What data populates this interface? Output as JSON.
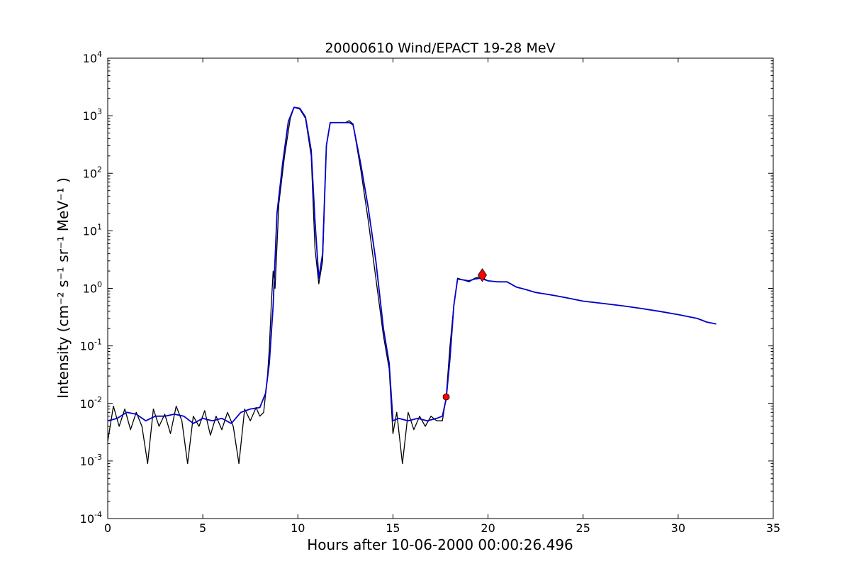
{
  "chart_data": {
    "type": "line",
    "title": "20000610 Wind/EPACT 19-28 MeV",
    "xlabel": "Hours after 10-06-2000 00:00:26.496",
    "ylabel": "Intensity (cm⁻² s⁻¹ sr⁻¹ MeV⁻¹ )",
    "xlim": [
      0,
      35
    ],
    "ylim": [
      0.0001,
      10000
    ],
    "yscale": "log",
    "grid": false,
    "x_ticks": [
      "0",
      "5",
      "10",
      "15",
      "20",
      "25",
      "30",
      "35"
    ],
    "y_ticks": [
      {
        "base": "10",
        "exp": "-4"
      },
      {
        "base": "10",
        "exp": "-3"
      },
      {
        "base": "10",
        "exp": "-2"
      },
      {
        "base": "10",
        "exp": "-1"
      },
      {
        "base": "10",
        "exp": "0"
      },
      {
        "base": "10",
        "exp": "1"
      },
      {
        "base": "10",
        "exp": "2"
      },
      {
        "base": "10",
        "exp": "3"
      },
      {
        "base": "10",
        "exp": "4"
      }
    ],
    "series": [
      {
        "color": "#000000",
        "x": [
          0.0,
          0.3,
          0.6,
          0.9,
          1.2,
          1.5,
          1.8,
          2.1,
          2.4,
          2.7,
          3.0,
          3.3,
          3.6,
          3.9,
          4.2,
          4.5,
          4.8,
          5.1,
          5.4,
          5.7,
          6.0,
          6.3,
          6.6,
          6.9,
          7.2,
          7.5,
          7.8,
          8.0,
          8.2,
          8.4,
          8.5,
          8.6,
          8.7,
          8.8,
          9.0,
          9.3,
          9.6,
          9.8,
          10.1,
          10.4,
          10.7,
          10.9,
          11.1,
          11.3,
          11.5,
          11.7,
          11.9,
          12.2,
          12.5,
          12.7,
          12.9,
          13.3,
          13.7,
          14.1,
          14.5,
          14.8,
          15.0,
          15.2,
          15.5,
          15.8,
          16.1,
          16.4,
          16.7,
          17.0,
          17.3,
          17.6,
          17.8,
          18.0,
          18.2,
          18.4,
          18.7,
          19.0,
          19.3,
          19.6,
          20.0,
          20.5,
          21.0,
          21.5,
          22.0,
          22.5,
          23.0,
          23.5,
          24.0,
          25.0,
          26.0,
          27.0,
          28.0,
          29.0,
          30.0,
          31.0,
          31.5,
          32.0
        ],
        "values": [
          0.0022,
          0.009,
          0.004,
          0.008,
          0.0035,
          0.007,
          0.004,
          0.0009,
          0.008,
          0.004,
          0.0065,
          0.003,
          0.009,
          0.005,
          0.0009,
          0.006,
          0.004,
          0.0075,
          0.0028,
          0.006,
          0.0035,
          0.007,
          0.004,
          0.0009,
          0.008,
          0.005,
          0.0085,
          0.006,
          0.007,
          0.03,
          0.09,
          0.5,
          2.0,
          1.0,
          30,
          200,
          900,
          1400,
          1300,
          900,
          200,
          5,
          1.2,
          3,
          300,
          750,
          760,
          760,
          760,
          820,
          720,
          120,
          15,
          1.5,
          0.15,
          0.04,
          0.003,
          0.007,
          0.0009,
          0.007,
          0.0035,
          0.006,
          0.004,
          0.006,
          0.005,
          0.005,
          0.013,
          0.1,
          0.5,
          1.5,
          1.4,
          1.3,
          1.5,
          1.6,
          1.35,
          1.3,
          1.3,
          1.05,
          0.95,
          0.85,
          0.8,
          0.75,
          0.7,
          0.6,
          0.55,
          0.5,
          0.45,
          0.4,
          0.35,
          0.3,
          0.26,
          0.24
        ]
      },
      {
        "color": "#0000cc",
        "x": [
          0.0,
          0.5,
          1.0,
          1.5,
          2.0,
          2.5,
          3.0,
          3.5,
          4.0,
          4.5,
          5.0,
          5.5,
          6.0,
          6.5,
          7.0,
          7.5,
          8.0,
          8.3,
          8.5,
          8.7,
          8.9,
          9.2,
          9.5,
          9.8,
          10.1,
          10.4,
          10.7,
          10.9,
          11.1,
          11.3,
          11.5,
          11.7,
          11.9,
          12.3,
          12.7,
          12.9,
          13.3,
          13.7,
          14.1,
          14.5,
          14.8,
          15.0,
          15.3,
          15.8,
          16.3,
          16.8,
          17.3,
          17.6,
          17.8,
          18.0,
          18.2,
          18.4,
          18.7,
          19.0,
          19.3,
          19.6,
          20.0,
          20.5,
          21.0,
          21.5,
          22.0,
          22.5,
          23.0,
          23.5,
          24.0,
          25.0,
          26.0,
          27.0,
          28.0,
          29.0,
          30.0,
          31.0,
          31.5,
          32.0
        ],
        "values": [
          0.005,
          0.0055,
          0.007,
          0.0065,
          0.005,
          0.006,
          0.006,
          0.0065,
          0.006,
          0.0045,
          0.0055,
          0.005,
          0.0055,
          0.0045,
          0.007,
          0.008,
          0.0085,
          0.015,
          0.05,
          0.5,
          20,
          150,
          800,
          1400,
          1350,
          950,
          250,
          15,
          1.5,
          4,
          300,
          760,
          760,
          760,
          760,
          700,
          150,
          25,
          3,
          0.2,
          0.05,
          0.005,
          0.0055,
          0.005,
          0.0055,
          0.005,
          0.0055,
          0.006,
          0.012,
          0.06,
          0.5,
          1.45,
          1.4,
          1.35,
          1.45,
          1.5,
          1.35,
          1.3,
          1.3,
          1.05,
          0.95,
          0.85,
          0.8,
          0.75,
          0.7,
          0.6,
          0.55,
          0.5,
          0.45,
          0.4,
          0.35,
          0.3,
          0.26,
          0.24
        ]
      }
    ],
    "markers": [
      {
        "shape": "circle",
        "color": "#ff0000",
        "x": 17.8,
        "y": 0.013
      },
      {
        "shape": "diamond",
        "color": "#ff0000",
        "x": 19.7,
        "y": 1.7
      }
    ]
  }
}
